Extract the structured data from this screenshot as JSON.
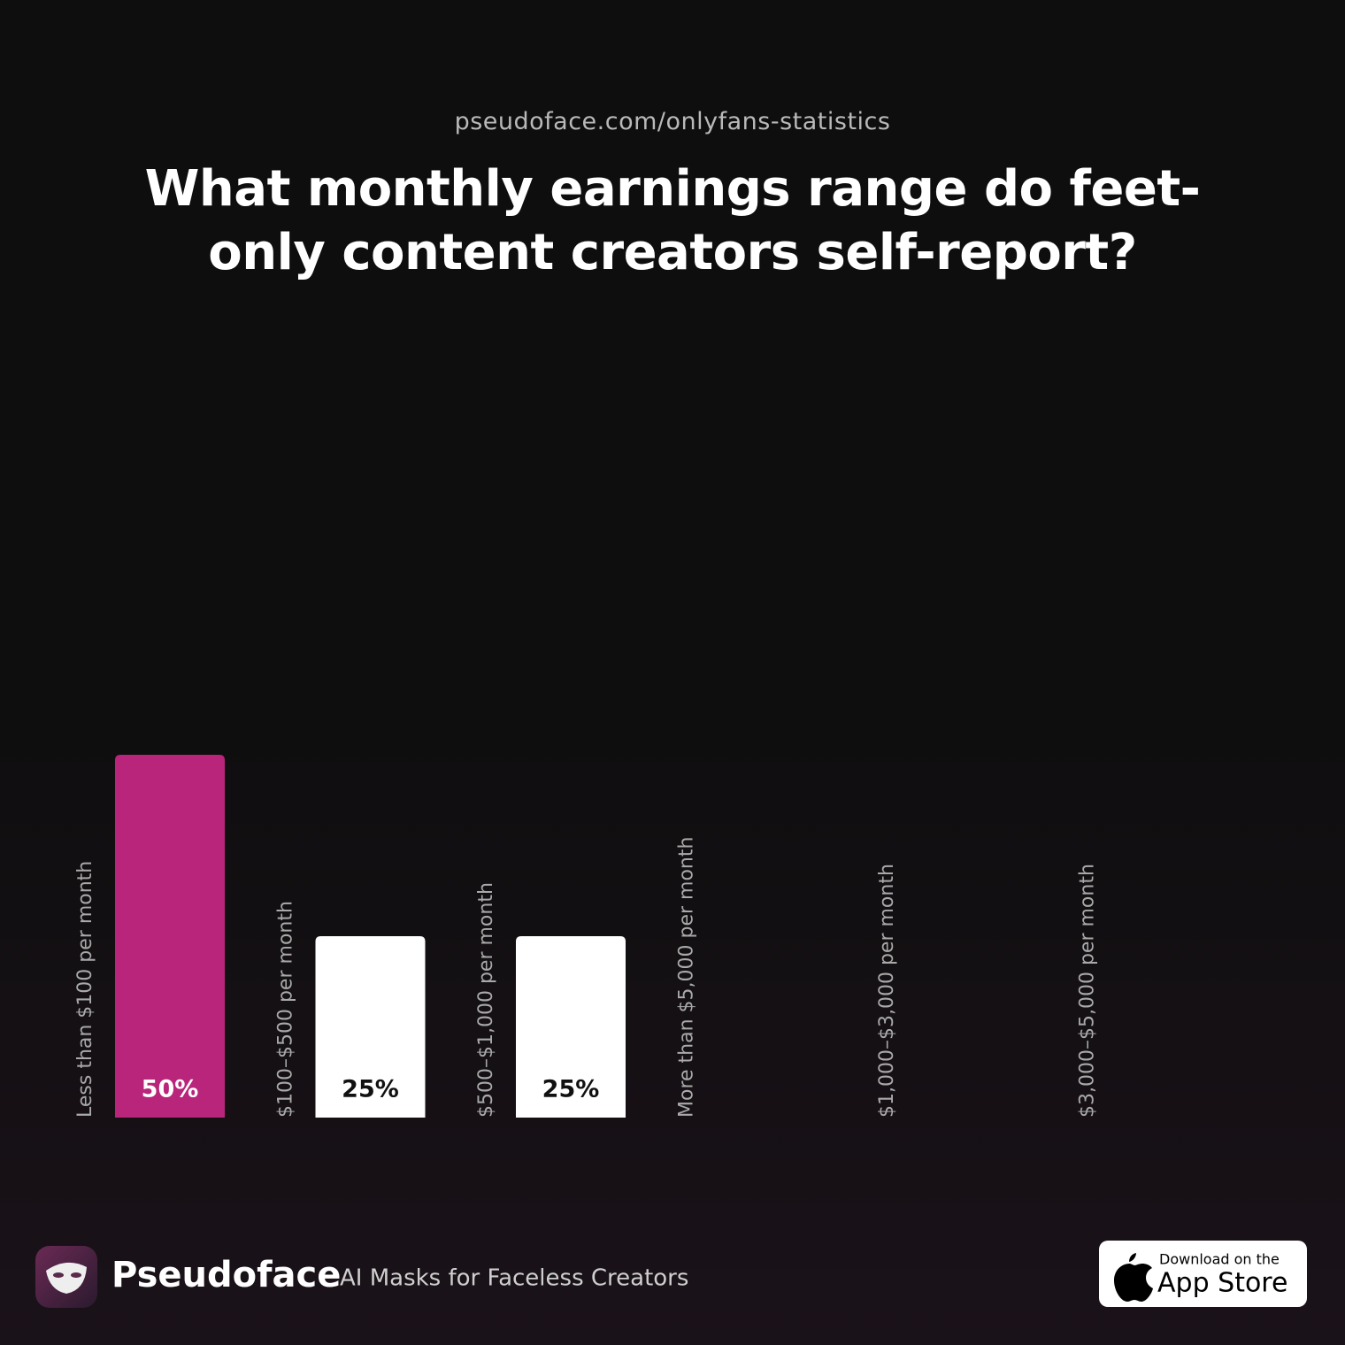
{
  "header": {
    "url": "pseudoface.com/onlyfans-statistics"
  },
  "chart_data": {
    "type": "bar",
    "title": "What monthly earnings range do feet-only content creators self-report?",
    "categories": [
      "Less than $100 per month",
      "$100–$500 per month",
      "$500–$1,000 per month",
      "More than $5,000 per month",
      "$1,000–$3,000 per month",
      "$3,000–$5,000 per month"
    ],
    "values": [
      50,
      25,
      25,
      0,
      0,
      0
    ],
    "value_labels": [
      "50%",
      "25%",
      "25%",
      null,
      null,
      null
    ],
    "colors": [
      "#b8257a",
      "#ffffff",
      "#ffffff",
      "#ffffff",
      "#ffffff",
      "#ffffff"
    ],
    "ylim": [
      0,
      100
    ]
  },
  "footer": {
    "brand": "Pseudoface",
    "tagline": "AI Masks for Faceless Creators",
    "badge_small": "Download on the",
    "badge_large": "App Store"
  }
}
